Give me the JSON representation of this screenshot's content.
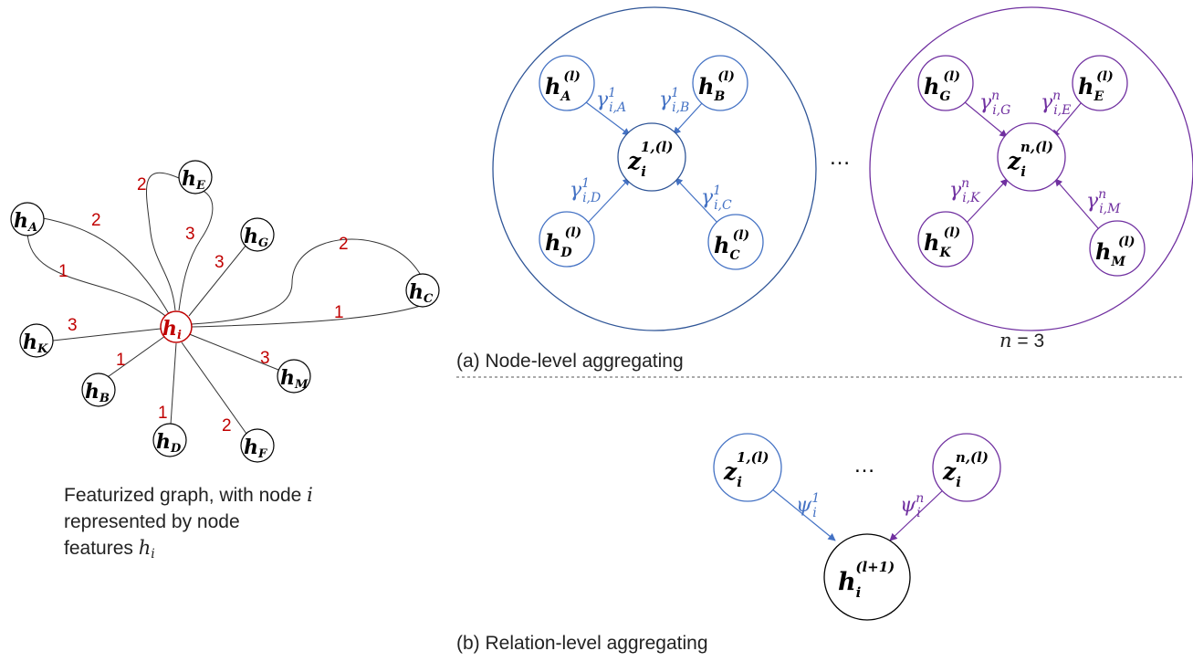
{
  "colors": {
    "black": "#000000",
    "red": "#c00000",
    "blue": "#4472c4",
    "purple": "#7030a0",
    "gray": "#444444"
  },
  "graph": {
    "center": {
      "var": "h",
      "sub": "i"
    },
    "nodes": [
      {
        "id": "A",
        "var": "h",
        "sub": "A"
      },
      {
        "id": "E",
        "var": "h",
        "sub": "E"
      },
      {
        "id": "G",
        "var": "h",
        "sub": "G"
      },
      {
        "id": "C",
        "var": "h",
        "sub": "C"
      },
      {
        "id": "K",
        "var": "h",
        "sub": "K"
      },
      {
        "id": "B",
        "var": "h",
        "sub": "B"
      },
      {
        "id": "M",
        "var": "h",
        "sub": "M"
      },
      {
        "id": "D",
        "var": "h",
        "sub": "D"
      },
      {
        "id": "F",
        "var": "h",
        "sub": "F"
      }
    ],
    "edge_weights": {
      "A_upper": "2",
      "A_lower": "1",
      "E_left": "2",
      "E_right": "3",
      "G": "3",
      "C_upper": "2",
      "C_lower": "1",
      "K": "3",
      "B": "1",
      "M": "3",
      "D": "1",
      "F": "2"
    },
    "caption_lines": [
      "Featurized graph, with node ",
      "represented by node",
      "features "
    ],
    "caption_vars": {
      "i": "i",
      "h": "h",
      "h_sub": "i"
    }
  },
  "panel_a": {
    "relation1": {
      "center": {
        "var": "z",
        "sub": "i",
        "sup": "1,(l)"
      },
      "nodes": [
        {
          "id": "A",
          "var": "h",
          "sub": "A",
          "sup": "(l)"
        },
        {
          "id": "B",
          "var": "h",
          "sub": "B",
          "sup": "(l)"
        },
        {
          "id": "D",
          "var": "h",
          "sub": "D",
          "sup": "(l)"
        },
        {
          "id": "C",
          "var": "h",
          "sub": "C",
          "sup": "(l)"
        }
      ],
      "weights": [
        {
          "sym": "γ",
          "sup": "1",
          "sub": "i,A"
        },
        {
          "sym": "γ",
          "sup": "1",
          "sub": "i,B"
        },
        {
          "sym": "γ",
          "sup": "1",
          "sub": "i,D"
        },
        {
          "sym": "γ",
          "sup": "1",
          "sub": "i,C"
        }
      ]
    },
    "relationN": {
      "center": {
        "var": "z",
        "sub": "i",
        "sup": "n,(l)"
      },
      "nodes": [
        {
          "id": "G",
          "var": "h",
          "sub": "G",
          "sup": "(l)"
        },
        {
          "id": "E",
          "var": "h",
          "sub": "E",
          "sup": "(l)"
        },
        {
          "id": "K",
          "var": "h",
          "sub": "K",
          "sup": "(l)"
        },
        {
          "id": "M",
          "var": "h",
          "sub": "M",
          "sup": "(l)"
        }
      ],
      "weights": [
        {
          "sym": "γ",
          "sup": "n",
          "sub": "i,G"
        },
        {
          "sym": "γ",
          "sup": "n",
          "sub": "i,E"
        },
        {
          "sym": "γ",
          "sup": "n",
          "sub": "i,K"
        },
        {
          "sym": "γ",
          "sup": "n",
          "sub": "i,M"
        }
      ]
    },
    "ellipsis": "…",
    "n_label_var": "n",
    "n_label_rest": " = 3",
    "caption": "(a) Node-level aggregating"
  },
  "panel_b": {
    "z1": {
      "var": "z",
      "sub": "i",
      "sup": "1,(l)"
    },
    "zn": {
      "var": "z",
      "sub": "i",
      "sup": "n,(l)"
    },
    "out": {
      "var": "h",
      "sub": "i",
      "sup": "(l+1)"
    },
    "psi1": {
      "sym": "ψ",
      "sup": "1",
      "sub": "i"
    },
    "psin": {
      "sym": "ψ",
      "sup": "n",
      "sub": "i"
    },
    "ellipsis": "…",
    "caption": "(b) Relation-level aggregating"
  }
}
